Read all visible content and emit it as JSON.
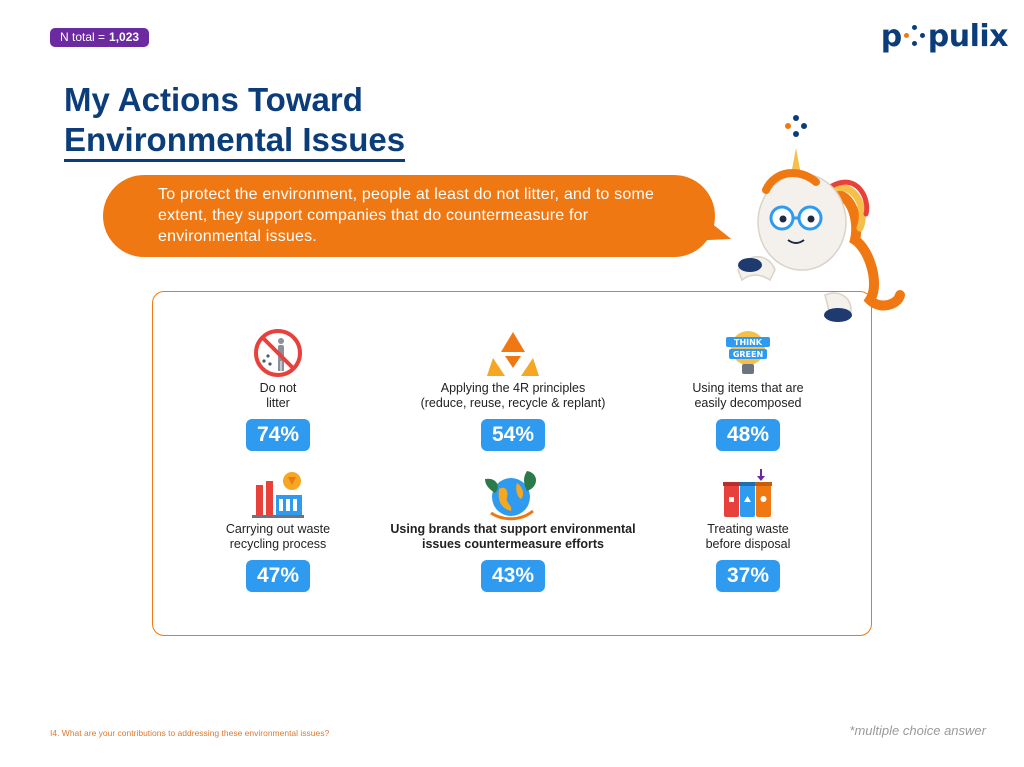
{
  "header": {
    "n_label": "N total =",
    "n_value": "1,023",
    "logo_text_a": "p",
    "logo_text_b": "pulix",
    "title_line1": "My Actions Toward",
    "title_line2": "Environmental Issues"
  },
  "bubble": {
    "text": "To protect the environment, people at least do not litter, and to some extent, they support companies that do countermeasure for environmental issues."
  },
  "items": [
    {
      "icon": "no-litter-icon",
      "label": "Do not\nlitter",
      "pct": "74%"
    },
    {
      "icon": "recycle-icon",
      "label": "Applying the 4R principles\n(reduce, reuse, recycle & replant)",
      "pct": "54%"
    },
    {
      "icon": "think-green-bulb-icon",
      "label": "Using items that are\neasily decomposed",
      "pct": "48%"
    },
    {
      "icon": "recycling-factory-icon",
      "label": "Carrying out waste\nrecycling process",
      "pct": "47%"
    },
    {
      "icon": "green-earth-icon",
      "label": "Using brands that support environmental\nissues countermeasure efforts",
      "pct": "43%"
    },
    {
      "icon": "sorting-bins-icon",
      "label": "Treating waste\nbefore disposal",
      "pct": "37%"
    }
  ],
  "footer": {
    "question": "I4. What are your contributions to addressing these environmental issues?",
    "note": "*multiple choice answer"
  },
  "icon_text": {
    "think": "THINK",
    "green": "GREEN"
  },
  "colors": {
    "navy": "#0b3d7a",
    "orange": "#f07813",
    "blue": "#2e9bf0",
    "purple": "#6c2aa0"
  }
}
